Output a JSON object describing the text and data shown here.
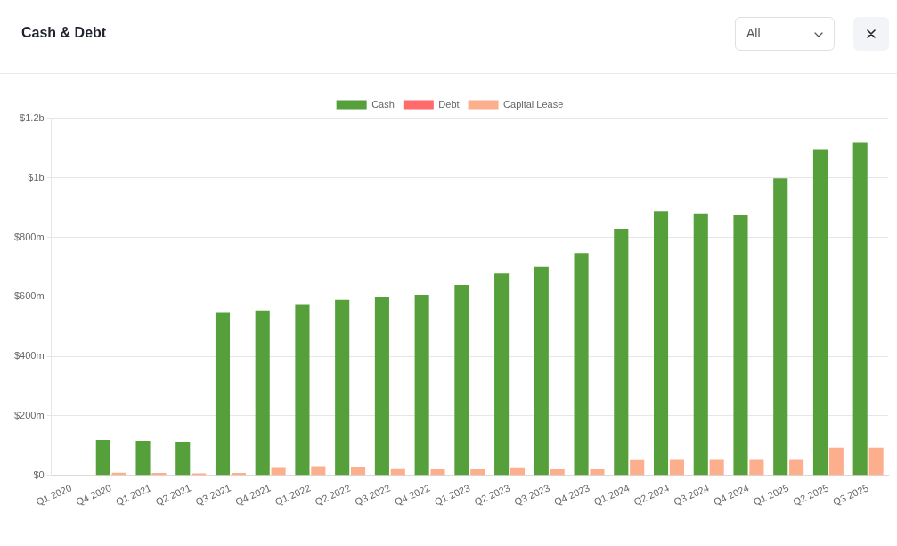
{
  "chart_data": {
    "type": "bar",
    "title": "Cash & Debt",
    "categories": [
      "Q1 2020",
      "Q4 2020",
      "Q1 2021",
      "Q2 2021",
      "Q3 2021",
      "Q4 2021",
      "Q1 2022",
      "Q2 2022",
      "Q3 2022",
      "Q4 2022",
      "Q1 2023",
      "Q2 2023",
      "Q3 2023",
      "Q4 2023",
      "Q1 2024",
      "Q2 2024",
      "Q3 2024",
      "Q4 2024",
      "Q1 2025",
      "Q2 2025",
      "Q3 2025"
    ],
    "series": [
      {
        "name": "Cash",
        "color": "#56a03b",
        "values": [
          null,
          119000000,
          116000000,
          113000000,
          549000000,
          554000000,
          576000000,
          590000000,
          599000000,
          607000000,
          640000000,
          678000000,
          701000000,
          747000000,
          829000000,
          888000000,
          880000000,
          877000000,
          999000000,
          1097000000,
          1121000000
        ]
      },
      {
        "name": "Debt",
        "color": "#ff6b6b",
        "values": [
          null,
          null,
          null,
          null,
          null,
          null,
          null,
          null,
          null,
          null,
          null,
          null,
          null,
          null,
          null,
          null,
          null,
          null,
          null,
          null,
          null
        ]
      },
      {
        "name": "Capital Lease",
        "color": "#fcae8d",
        "values": [
          null,
          9000000,
          8000000,
          7000000,
          8000000,
          28000000,
          31000000,
          29000000,
          24000000,
          22000000,
          21000000,
          27000000,
          21000000,
          21000000,
          54000000,
          55000000,
          55000000,
          55000000,
          55000000,
          93000000,
          93000000
        ]
      }
    ],
    "ylim": [
      0,
      1200000000
    ],
    "yticks": [
      {
        "value": 0,
        "label": "$0"
      },
      {
        "value": 200000000,
        "label": "$200m"
      },
      {
        "value": 400000000,
        "label": "$400m"
      },
      {
        "value": 600000000,
        "label": "$600m"
      },
      {
        "value": 800000000,
        "label": "$800m"
      },
      {
        "value": 1000000000,
        "label": "$1b"
      },
      {
        "value": 1200000000,
        "label": "$1.2b"
      }
    ],
    "grid": "y",
    "legend": "top",
    "annotations": [
      "All"
    ]
  }
}
